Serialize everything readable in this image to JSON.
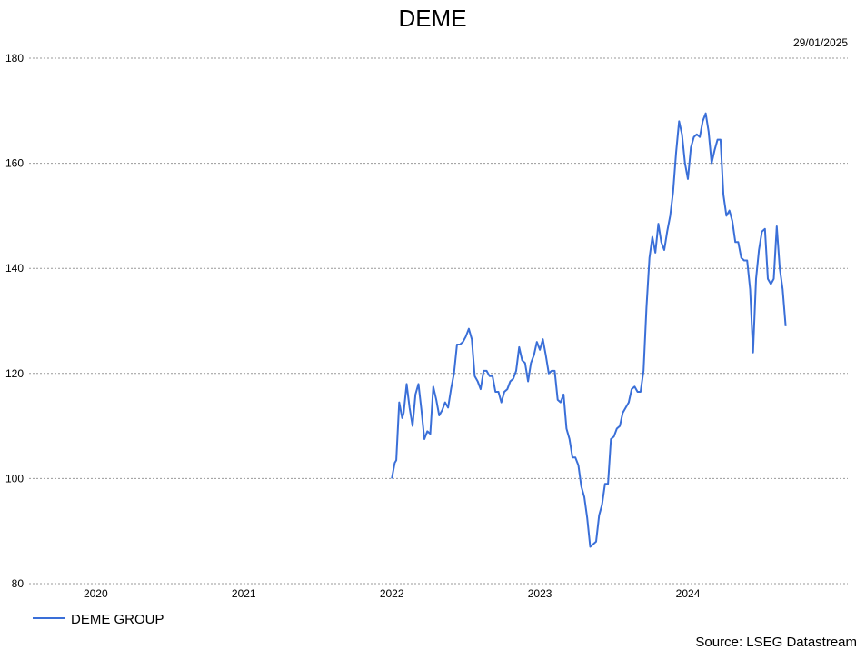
{
  "chart_data": {
    "type": "line",
    "title": "DEME",
    "date_label": "29/01/2025",
    "source": "Source: LSEG Datastream",
    "xlabel": "",
    "ylabel": "",
    "ylim": [
      80,
      180
    ],
    "yticks": [
      80,
      100,
      120,
      140,
      160,
      180
    ],
    "xlim": [
      2019.55,
      2025.08
    ],
    "xticks": [
      {
        "label": "2020",
        "value": 2020
      },
      {
        "label": "2021",
        "value": 2021
      },
      {
        "label": "2022",
        "value": 2022
      },
      {
        "label": "2023",
        "value": 2023
      },
      {
        "label": "2024",
        "value": 2024
      }
    ],
    "grid": "horizontal dotted",
    "legend_position": "bottom-left",
    "series": [
      {
        "name": "DEME GROUP",
        "color": "#3a6fd8",
        "points": [
          [
            2022.0,
            100.0
          ],
          [
            2022.02,
            103.0
          ],
          [
            2022.03,
            103.5
          ],
          [
            2022.05,
            114.5
          ],
          [
            2022.07,
            111.5
          ],
          [
            2022.08,
            112.5
          ],
          [
            2022.1,
            118.0
          ],
          [
            2022.12,
            113.5
          ],
          [
            2022.14,
            110.0
          ],
          [
            2022.16,
            116.0
          ],
          [
            2022.18,
            118.0
          ],
          [
            2022.2,
            113.0
          ],
          [
            2022.22,
            107.5
          ],
          [
            2022.24,
            109.0
          ],
          [
            2022.26,
            108.5
          ],
          [
            2022.28,
            117.5
          ],
          [
            2022.3,
            115.0
          ],
          [
            2022.32,
            112.0
          ],
          [
            2022.34,
            113.0
          ],
          [
            2022.36,
            114.5
          ],
          [
            2022.38,
            113.5
          ],
          [
            2022.4,
            117.0
          ],
          [
            2022.42,
            120.0
          ],
          [
            2022.44,
            125.5
          ],
          [
            2022.46,
            125.5
          ],
          [
            2022.48,
            126.0
          ],
          [
            2022.5,
            127.0
          ],
          [
            2022.52,
            128.5
          ],
          [
            2022.54,
            126.5
          ],
          [
            2022.56,
            119.5
          ],
          [
            2022.58,
            118.5
          ],
          [
            2022.6,
            117.0
          ],
          [
            2022.62,
            120.5
          ],
          [
            2022.64,
            120.5
          ],
          [
            2022.66,
            119.5
          ],
          [
            2022.68,
            119.5
          ],
          [
            2022.7,
            116.5
          ],
          [
            2022.72,
            116.5
          ],
          [
            2022.74,
            114.5
          ],
          [
            2022.76,
            116.5
          ],
          [
            2022.78,
            117.0
          ],
          [
            2022.8,
            118.5
          ],
          [
            2022.82,
            119.0
          ],
          [
            2022.84,
            120.5
          ],
          [
            2022.86,
            125.0
          ],
          [
            2022.88,
            122.5
          ],
          [
            2022.9,
            122.0
          ],
          [
            2022.92,
            118.5
          ],
          [
            2022.94,
            122.0
          ],
          [
            2022.96,
            123.5
          ],
          [
            2022.98,
            126.0
          ],
          [
            2023.0,
            124.5
          ],
          [
            2023.02,
            126.5
          ],
          [
            2023.04,
            123.5
          ],
          [
            2023.06,
            120.0
          ],
          [
            2023.08,
            120.5
          ],
          [
            2023.1,
            120.5
          ],
          [
            2023.12,
            115.0
          ],
          [
            2023.14,
            114.5
          ],
          [
            2023.16,
            116.0
          ],
          [
            2023.18,
            109.5
          ],
          [
            2023.2,
            107.5
          ],
          [
            2023.22,
            104.0
          ],
          [
            2023.24,
            104.0
          ],
          [
            2023.26,
            102.5
          ],
          [
            2023.28,
            98.5
          ],
          [
            2023.3,
            96.5
          ],
          [
            2023.32,
            92.5
          ],
          [
            2023.34,
            87.0
          ],
          [
            2023.36,
            87.5
          ],
          [
            2023.38,
            88.0
          ],
          [
            2023.4,
            93.0
          ],
          [
            2023.42,
            95.0
          ],
          [
            2023.44,
            99.0
          ],
          [
            2023.46,
            99.0
          ],
          [
            2023.48,
            107.5
          ],
          [
            2023.5,
            108.0
          ],
          [
            2023.52,
            109.5
          ],
          [
            2023.54,
            110.0
          ],
          [
            2023.56,
            112.5
          ],
          [
            2023.58,
            113.5
          ],
          [
            2023.6,
            114.5
          ],
          [
            2023.62,
            117.0
          ],
          [
            2023.64,
            117.5
          ],
          [
            2023.66,
            116.5
          ],
          [
            2023.68,
            116.5
          ],
          [
            2023.7,
            120.5
          ],
          [
            2023.72,
            132.5
          ],
          [
            2023.74,
            142.0
          ],
          [
            2023.76,
            146.0
          ],
          [
            2023.78,
            143.0
          ],
          [
            2023.8,
            148.5
          ],
          [
            2023.82,
            145.0
          ],
          [
            2023.84,
            143.5
          ],
          [
            2023.86,
            147.0
          ],
          [
            2023.88,
            150.0
          ],
          [
            2023.9,
            154.5
          ],
          [
            2023.92,
            162.0
          ],
          [
            2023.94,
            168.0
          ],
          [
            2023.96,
            165.5
          ],
          [
            2023.98,
            160.0
          ],
          [
            2024.0,
            157.0
          ],
          [
            2024.02,
            163.0
          ],
          [
            2024.04,
            165.0
          ],
          [
            2024.06,
            165.5
          ],
          [
            2024.08,
            165.0
          ],
          [
            2024.1,
            168.0
          ],
          [
            2024.12,
            169.5
          ],
          [
            2024.14,
            166.0
          ],
          [
            2024.16,
            160.0
          ],
          [
            2024.18,
            162.5
          ],
          [
            2024.2,
            164.5
          ],
          [
            2024.22,
            164.5
          ],
          [
            2024.24,
            154.0
          ],
          [
            2024.26,
            150.0
          ],
          [
            2024.28,
            151.0
          ],
          [
            2024.3,
            149.0
          ],
          [
            2024.32,
            145.0
          ],
          [
            2024.34,
            145.0
          ],
          [
            2024.36,
            142.0
          ],
          [
            2024.38,
            141.5
          ],
          [
            2024.4,
            141.5
          ],
          [
            2024.42,
            136.0
          ],
          [
            2024.44,
            124.0
          ],
          [
            2024.46,
            138.0
          ],
          [
            2024.48,
            143.5
          ],
          [
            2024.5,
            147.0
          ],
          [
            2024.52,
            147.5
          ],
          [
            2024.54,
            138.0
          ],
          [
            2024.56,
            137.0
          ],
          [
            2024.58,
            138.0
          ],
          [
            2024.6,
            148.0
          ],
          [
            2024.62,
            140.0
          ],
          [
            2024.64,
            136.0
          ],
          [
            2024.66,
            129.0
          ]
        ]
      }
    ]
  }
}
